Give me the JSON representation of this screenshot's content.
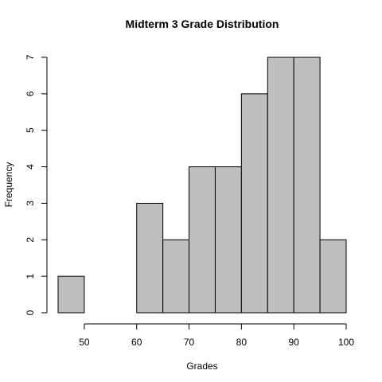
{
  "chart_data": {
    "type": "bar",
    "title": "Midterm 3 Grade Distribution",
    "xlabel": "Grades",
    "ylabel": "Frequency",
    "bins": [
      {
        "from": 45,
        "to": 50,
        "count": 1
      },
      {
        "from": 50,
        "to": 55,
        "count": 0
      },
      {
        "from": 55,
        "to": 60,
        "count": 0
      },
      {
        "from": 60,
        "to": 65,
        "count": 3
      },
      {
        "from": 65,
        "to": 70,
        "count": 2
      },
      {
        "from": 70,
        "to": 75,
        "count": 4
      },
      {
        "from": 75,
        "to": 80,
        "count": 4
      },
      {
        "from": 80,
        "to": 85,
        "count": 6
      },
      {
        "from": 85,
        "to": 90,
        "count": 7
      },
      {
        "from": 90,
        "to": 95,
        "count": 7
      },
      {
        "from": 95,
        "to": 100,
        "count": 2
      }
    ],
    "xlim": [
      45,
      100
    ],
    "ylim": [
      0,
      7
    ],
    "xticks": [
      50,
      60,
      70,
      80,
      90,
      100
    ],
    "yticks": [
      0,
      1,
      2,
      3,
      4,
      5,
      6,
      7
    ],
    "grid": false,
    "colors": {
      "bar_fill": "#bebebe",
      "bar_stroke": "#000000"
    }
  }
}
